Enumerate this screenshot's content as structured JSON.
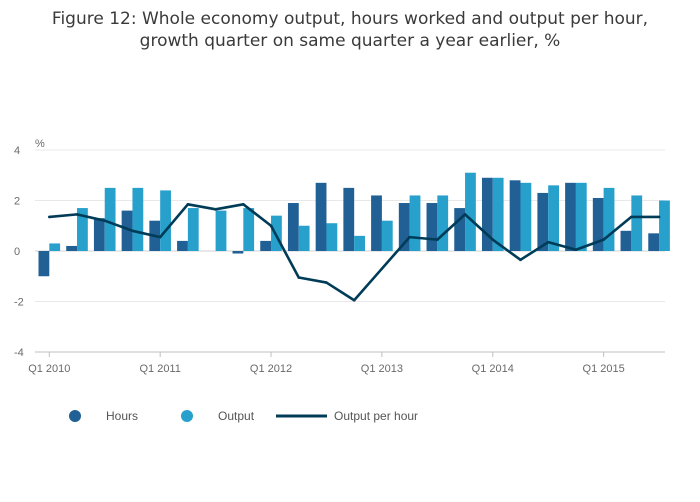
{
  "title_lines": [
    "Figure 12: Whole economy output, hours worked and output per hour,",
    "growth quarter on same quarter a year earlier, %"
  ],
  "colors": {
    "hours": "#206095",
    "output": "#27a0cc",
    "output_per_hour": "#003c57",
    "grid": "#e8e8e8",
    "axis": "#bfbfbf"
  },
  "chart_data": {
    "type": "bar",
    "title": "Figure 12: Whole economy output, hours worked and output per hour, growth quarter on same quarter a year earlier, %",
    "ylabel": "%",
    "xlabel": "",
    "ylim": [
      -4,
      4
    ],
    "yticks": [
      -4,
      -2,
      0,
      2,
      4
    ],
    "grid": true,
    "legend_position": "bottom",
    "categories": [
      "Q1 2010",
      "Q2 2010",
      "Q3 2010",
      "Q4 2010",
      "Q1 2011",
      "Q2 2011",
      "Q3 2011",
      "Q4 2011",
      "Q1 2012",
      "Q2 2012",
      "Q3 2012",
      "Q4 2012",
      "Q1 2013",
      "Q2 2013",
      "Q3 2013",
      "Q4 2013",
      "Q1 2014",
      "Q2 2014",
      "Q3 2014",
      "Q4 2014",
      "Q1 2015",
      "Q2 2015",
      "Q3 2015"
    ],
    "x_tick_labels": [
      "Q1 2010",
      "Q1 2011",
      "Q1 2012",
      "Q1 2013",
      "Q1 2014",
      "Q1 2015"
    ],
    "series": [
      {
        "name": "Hours",
        "type": "bar",
        "values": [
          -1.0,
          0.2,
          1.3,
          1.6,
          1.2,
          0.4,
          0.0,
          -0.1,
          0.4,
          1.9,
          2.7,
          2.5,
          2.2,
          1.9,
          1.9,
          1.7,
          2.9,
          2.8,
          2.3,
          2.7,
          2.1,
          0.8,
          0.7
        ]
      },
      {
        "name": "Output",
        "type": "bar",
        "values": [
          0.3,
          1.7,
          2.5,
          2.5,
          2.4,
          1.7,
          1.6,
          1.7,
          1.4,
          1.0,
          1.1,
          0.6,
          1.2,
          2.2,
          2.2,
          3.1,
          2.9,
          2.7,
          2.6,
          2.7,
          2.5,
          2.2,
          2.0
        ]
      },
      {
        "name": "Output per hour",
        "type": "line",
        "values": [
          1.35,
          1.45,
          1.2,
          0.8,
          0.55,
          1.85,
          1.65,
          1.85,
          1.0,
          -1.05,
          -1.25,
          -1.95,
          -0.7,
          0.55,
          0.45,
          1.45,
          0.45,
          -0.35,
          0.35,
          0.05,
          0.45,
          1.35,
          1.35
        ]
      }
    ]
  }
}
